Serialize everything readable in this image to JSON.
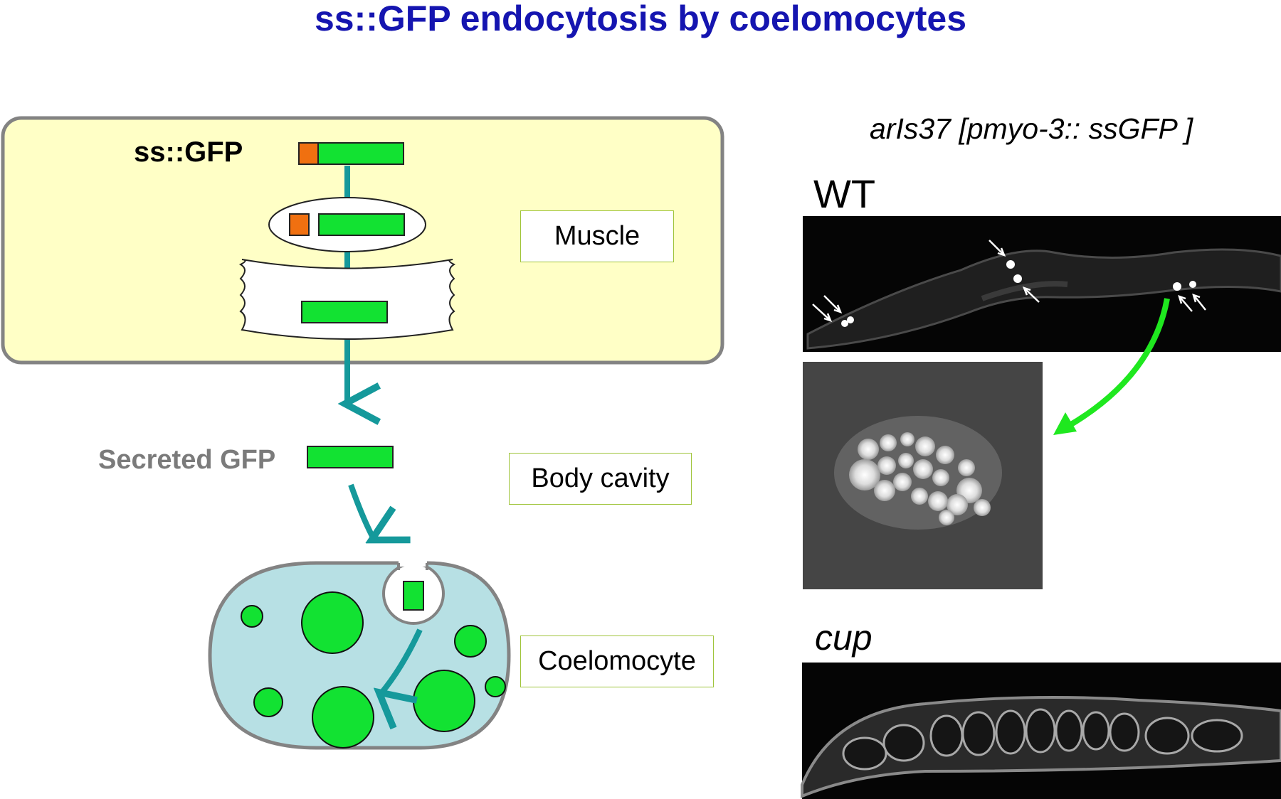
{
  "title": "ss::GFP endocytosis by coelomocytes",
  "left": {
    "construct_label": "ss::GFP",
    "secreted_label": "Secreted GFP",
    "boxes": {
      "muscle": "Muscle",
      "body_cavity": "Body cavity",
      "coelomocyte": "Coelomocyte"
    }
  },
  "right": {
    "strain_label": "arIs37 [pmyo-3:: ssGFP ]",
    "panels": {
      "wt": "WT",
      "cup": "cup"
    }
  },
  "colors": {
    "title": "#1515b0",
    "gfp": "#12e232",
    "signal_peptide": "#f07010",
    "muscle_fill": "#ffffc6",
    "coelomocyte_fill": "#b7e0e4",
    "pathway_arrow": "#15999b",
    "zoom_arrow": "#1fe81f",
    "secreted_text": "#7b7b7b"
  }
}
